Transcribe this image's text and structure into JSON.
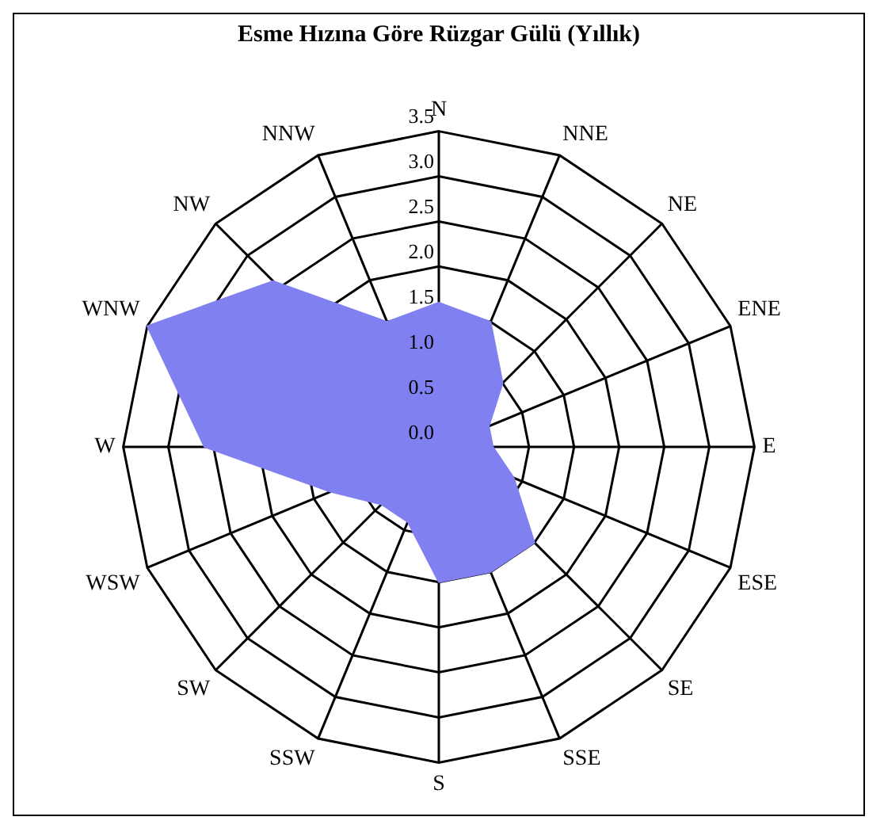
{
  "chart_data": {
    "type": "radar",
    "title": "Esme Hızına Göre Rüzgar Gülü (Yıllık)",
    "categories": [
      "N",
      "NNE",
      "NE",
      "ENE",
      "E",
      "ESE",
      "SE",
      "SSE",
      "S",
      "SSW",
      "SW",
      "WSW",
      "W",
      "WNW",
      "NW",
      "NNW"
    ],
    "series": [
      {
        "color": "#8080f0",
        "values": [
          1.6,
          1.5,
          1.0,
          0.6,
          0.6,
          0.9,
          1.5,
          1.5,
          1.5,
          0.9,
          0.9,
          1.3,
          2.6,
          3.5,
          2.6,
          1.5
        ]
      }
    ],
    "ylim": [
      0,
      3.5
    ],
    "yticks": [
      {
        "value": 0,
        "label": "0.0"
      },
      {
        "value": 0.5,
        "label": "0.5"
      },
      {
        "value": 1,
        "label": "1.0"
      },
      {
        "value": 1.5,
        "label": "1.5"
      },
      {
        "value": 2,
        "label": "2.0"
      },
      {
        "value": 2.5,
        "label": "2.5"
      },
      {
        "value": 3,
        "label": "3.0"
      },
      {
        "value": 3.5,
        "label": "3.5"
      }
    ],
    "grid": true,
    "legend": false,
    "marker": "none"
  }
}
